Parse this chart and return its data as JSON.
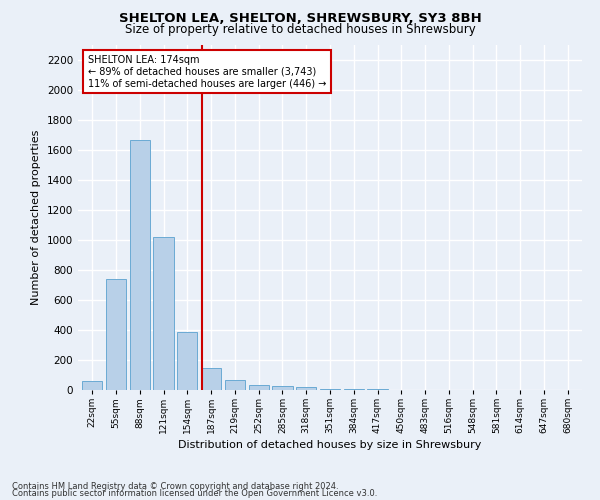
{
  "title": "SHELTON LEA, SHELTON, SHREWSBURY, SY3 8BH",
  "subtitle": "Size of property relative to detached houses in Shrewsbury",
  "xlabel": "Distribution of detached houses by size in Shrewsbury",
  "ylabel": "Number of detached properties",
  "footnote1": "Contains HM Land Registry data © Crown copyright and database right 2024.",
  "footnote2": "Contains public sector information licensed under the Open Government Licence v3.0.",
  "annotation_line1": "SHELTON LEA: 174sqm",
  "annotation_line2": "← 89% of detached houses are smaller (3,743)",
  "annotation_line3": "11% of semi-detached houses are larger (446) →",
  "property_size": 174,
  "red_line_x": 4,
  "categories": [
    "22sqm",
    "55sqm",
    "88sqm",
    "121sqm",
    "154sqm",
    "187sqm",
    "219sqm",
    "252sqm",
    "285sqm",
    "318sqm",
    "351sqm",
    "384sqm",
    "417sqm",
    "450sqm",
    "483sqm",
    "516sqm",
    "548sqm",
    "581sqm",
    "614sqm",
    "647sqm",
    "680sqm"
  ],
  "values": [
    60,
    740,
    1670,
    1020,
    390,
    145,
    65,
    35,
    25,
    17,
    10,
    8,
    5,
    3,
    2,
    1,
    1,
    0,
    0,
    0,
    0
  ],
  "bar_color": "#b8d0e8",
  "bar_edge_color": "#6aaad4",
  "red_line_color": "#cc0000",
  "annotation_box_edge": "#cc0000",
  "background_color": "#eaf0f8",
  "grid_color": "#ffffff",
  "ylim": [
    0,
    2300
  ],
  "yticks": [
    0,
    200,
    400,
    600,
    800,
    1000,
    1200,
    1400,
    1600,
    1800,
    2000,
    2200
  ]
}
